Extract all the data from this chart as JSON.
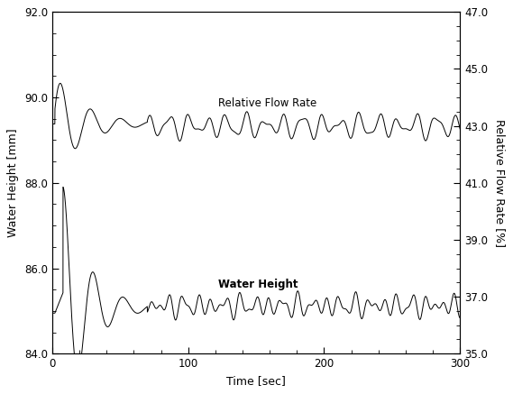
{
  "xlabel": "Time [sec]",
  "ylabel_left": "Water Height [mm]",
  "ylabel_right": "Relative Flow Rate [%]",
  "label_flow": "Relative Flow Rate",
  "label_height": "Water Height",
  "xlim": [
    0,
    300
  ],
  "ylim_left": [
    84.0,
    92.0
  ],
  "ylim_right": [
    35.0,
    47.0
  ],
  "yticks_left": [
    84.0,
    86.0,
    88.0,
    90.0,
    92.0
  ],
  "yticks_right": [
    35.0,
    37.0,
    39.0,
    41.0,
    43.0,
    45.0,
    47.0
  ],
  "xticks": [
    0,
    100,
    200,
    300
  ],
  "line_color": "#000000",
  "bg_color": "#ffffff",
  "font_size_labels": 9,
  "font_size_ticks": 8.5
}
